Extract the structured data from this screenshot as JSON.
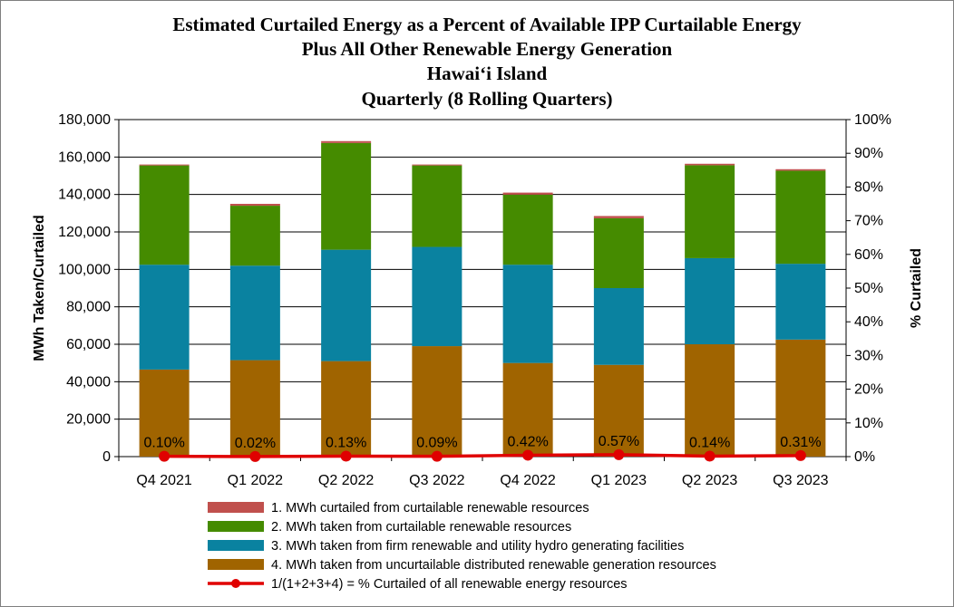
{
  "chart_data": {
    "type": "bar",
    "stacked": true,
    "title": [
      "Estimated Curtailed Energy as a Percent of Available IPP Curtailable Energy",
      "Plus All Other Renewable Energy Generation",
      "Hawai‘i Island",
      "Quarterly (8 Rolling Quarters)"
    ],
    "categories": [
      "Q4 2021",
      "Q1 2022",
      "Q2 2022",
      "Q3 2022",
      "Q4 2022",
      "Q1 2023",
      "Q2 2023",
      "Q3 2023"
    ],
    "ylabel": "MWh Taken/Curtailed",
    "y2label": "% Curtailed",
    "ylim": [
      0,
      180000
    ],
    "y2lim": [
      0,
      100
    ],
    "yticks": [
      "0",
      "20,000",
      "40,000",
      "60,000",
      "80,000",
      "100,000",
      "120,000",
      "140,000",
      "160,000",
      "180,000"
    ],
    "y2ticks": [
      "0%",
      "10%",
      "20%",
      "30%",
      "40%",
      "50%",
      "60%",
      "70%",
      "80%",
      "90%",
      "100%"
    ],
    "series": [
      {
        "name": "4. MWh taken from uncurtailable distributed renewable generation resources",
        "color": "#a06400",
        "values": [
          46500,
          51500,
          51000,
          59000,
          50000,
          49000,
          60000,
          62500
        ]
      },
      {
        "name": "3. MWh taken from firm renewable and utility hydro generating facilities",
        "color": "#0a82a0",
        "values": [
          56000,
          50500,
          59500,
          53000,
          52500,
          41000,
          46000,
          40500
        ]
      },
      {
        "name": "2. MWh taken from curtailable renewable resources",
        "color": "#458b00",
        "values": [
          53000,
          32000,
          57000,
          43500,
          37400,
          37300,
          49600,
          49700
        ]
      },
      {
        "name": "1. MWh curtailed from curtailable renewable resources",
        "color": "#c0504d",
        "values": [
          500,
          1000,
          1000,
          500,
          1100,
          1200,
          800,
          800
        ]
      }
    ],
    "line": {
      "name": "1/(1+2+3+4) = % Curtailed of all renewable energy resources",
      "color": "#e00000",
      "values": [
        0.1,
        0.02,
        0.13,
        0.09,
        0.42,
        0.57,
        0.14,
        0.31
      ],
      "labels": [
        "0.10%",
        "0.02%",
        "0.13%",
        "0.09%",
        "0.42%",
        "0.57%",
        "0.14%",
        "0.31%"
      ]
    },
    "legend": [
      "1. MWh curtailed from curtailable renewable resources",
      "2. MWh taken from curtailable renewable resources",
      "3. MWh taken from firm renewable and utility hydro generating facilities",
      "4. MWh taken from uncurtailable distributed renewable generation resources",
      "1/(1+2+3+4) = % Curtailed of all renewable energy resources"
    ],
    "legend_position": "bottom"
  }
}
